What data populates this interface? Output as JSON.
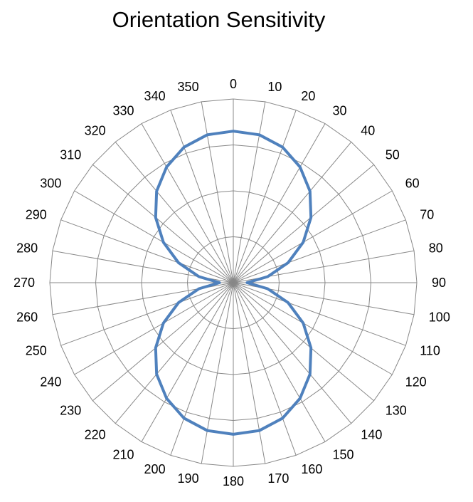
{
  "chart_data": {
    "type": "radar",
    "title": "Orientation Sensitivity",
    "angle_labels": [
      "0",
      "10",
      "20",
      "30",
      "40",
      "50",
      "60",
      "70",
      "80",
      "90",
      "100",
      "110",
      "120",
      "130",
      "140",
      "150",
      "160",
      "170",
      "180",
      "190",
      "200",
      "210",
      "220",
      "230",
      "240",
      "250",
      "260",
      "270",
      "280",
      "290",
      "300",
      "310",
      "320",
      "330",
      "340",
      "350"
    ],
    "rmax": 4,
    "ring_count": 4,
    "grid": true,
    "legend": "none",
    "colors": {
      "series": "#4F81BD",
      "grid": "#888888",
      "axis": "#888888"
    },
    "series": [
      {
        "values": [
          3.3,
          3.27,
          3.14,
          2.91,
          2.6,
          2.21,
          1.76,
          1.27,
          0.76,
          0.3,
          0.76,
          1.27,
          1.76,
          2.21,
          2.6,
          2.91,
          3.14,
          3.27,
          3.3,
          3.27,
          3.14,
          2.91,
          2.6,
          2.21,
          1.76,
          1.27,
          0.76,
          0.3,
          0.76,
          1.27,
          1.76,
          2.21,
          2.6,
          2.91,
          3.14,
          3.27
        ]
      }
    ]
  }
}
